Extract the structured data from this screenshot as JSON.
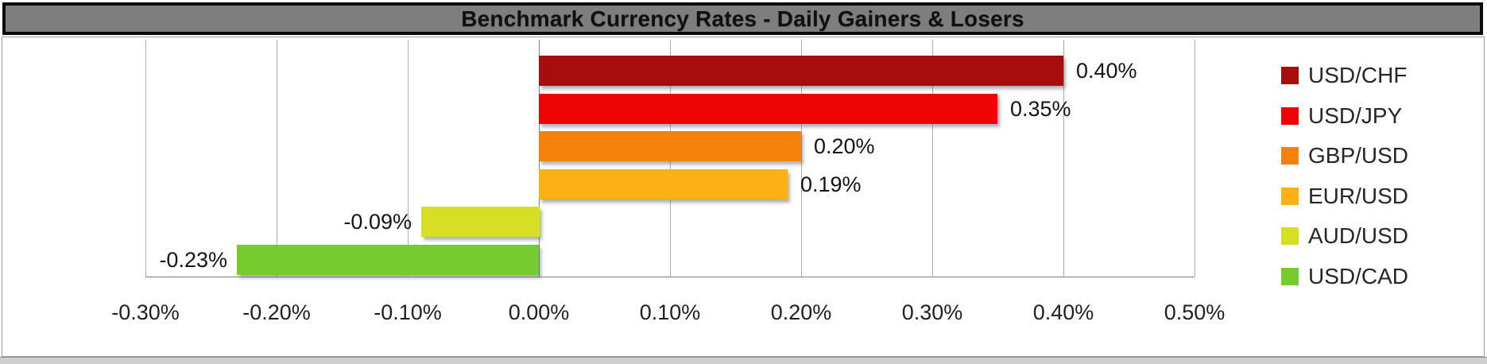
{
  "chart_data": {
    "type": "bar",
    "orientation": "horizontal",
    "title": "Benchmark Currency Rates - Daily Gainers & Losers",
    "categories": [
      "USD/CHF",
      "USD/JPY",
      "GBP/USD",
      "EUR/USD",
      "AUD/USD",
      "USD/CAD"
    ],
    "values": [
      0.4,
      0.35,
      0.2,
      0.19,
      -0.09,
      -0.23
    ],
    "value_labels": [
      "0.40%",
      "0.35%",
      "0.20%",
      "0.19%",
      "-0.09%",
      "-0.23%"
    ],
    "bar_colors": [
      "#a60d0d",
      "#ee0404",
      "#f6820b",
      "#f9b116",
      "#d6df23",
      "#76cb2f"
    ],
    "x_ticks": [
      "-0.30%",
      "-0.20%",
      "-0.10%",
      "0.00%",
      "0.10%",
      "0.20%",
      "0.30%",
      "0.40%",
      "0.50%"
    ],
    "x_tick_values": [
      -0.3,
      -0.2,
      -0.1,
      0.0,
      0.1,
      0.2,
      0.3,
      0.4,
      0.5
    ],
    "xlim": [
      -0.3,
      0.5
    ],
    "unit": "%",
    "grid": true,
    "legend_position": "right",
    "legend": [
      {
        "label": "USD/CHF",
        "color": "#a60d0d"
      },
      {
        "label": "USD/JPY",
        "color": "#ee0404"
      },
      {
        "label": "GBP/USD",
        "color": "#f6820b"
      },
      {
        "label": "EUR/USD",
        "color": "#f9b116"
      },
      {
        "label": "AUD/USD",
        "color": "#d6df23"
      },
      {
        "label": "USD/CAD",
        "color": "#76cb2f"
      }
    ],
    "colors": {
      "title_bar_background": "#7e7e7e",
      "title_text": "#101010",
      "gridline": "#ababab",
      "axis_line": "#7f7f7f",
      "plot_background": "#ffffff"
    }
  }
}
